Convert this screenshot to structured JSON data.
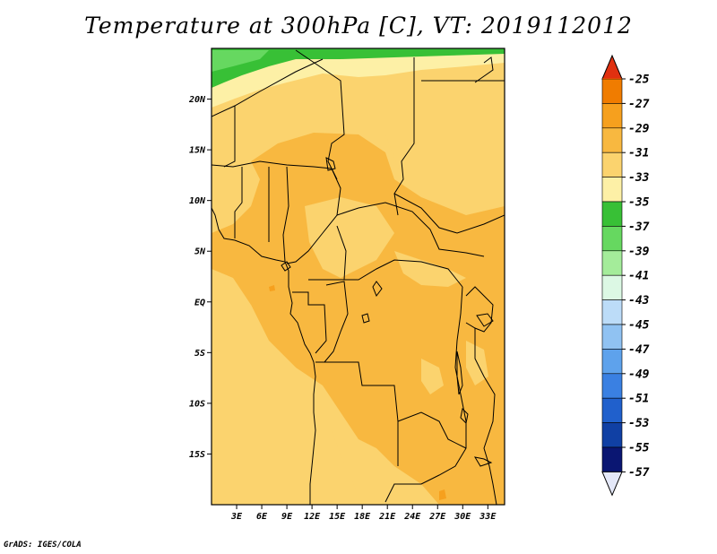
{
  "title": "Temperature at 300hPa [C], VT: 2019112012",
  "credit": "GrADS: IGES/COLA",
  "map": {
    "lon_range": [
      0,
      35
    ],
    "lat_range": [
      -20,
      25
    ],
    "lat_ticks": [
      {
        "label": "20N",
        "lat": 20
      },
      {
        "label": "15N",
        "lat": 15
      },
      {
        "label": "10N",
        "lat": 10
      },
      {
        "label": "5N",
        "lat": 5
      },
      {
        "label": "EQ",
        "lat": 0
      },
      {
        "label": "5S",
        "lat": -5
      },
      {
        "label": "10S",
        "lat": -10
      },
      {
        "label": "15S",
        "lat": -15
      }
    ],
    "lon_ticks": [
      {
        "label": "3E",
        "lon": 3
      },
      {
        "label": "6E",
        "lon": 6
      },
      {
        "label": "9E",
        "lon": 9
      },
      {
        "label": "12E",
        "lon": 12
      },
      {
        "label": "15E",
        "lon": 15
      },
      {
        "label": "18E",
        "lon": 18
      },
      {
        "label": "21E",
        "lon": 21
      },
      {
        "label": "24E",
        "lon": 24
      },
      {
        "label": "27E",
        "lon": 27
      },
      {
        "label": "30E",
        "lon": 30
      },
      {
        "label": "33E",
        "lon": 33
      }
    ]
  },
  "colorbar": {
    "levels": [
      {
        "label": "-25",
        "color": "#e85a00"
      },
      {
        "label": "-27",
        "color": "#f07c00"
      },
      {
        "label": "-29",
        "color": "#f6a01e"
      },
      {
        "label": "-31",
        "color": "#f8b840"
      },
      {
        "label": "-33",
        "color": "#fbd36e"
      },
      {
        "label": "-35",
        "color": "#fdf0a6"
      },
      {
        "label": "-37",
        "color": "#38c036"
      },
      {
        "label": "-39",
        "color": "#66d860"
      },
      {
        "label": "-41",
        "color": "#a4ec9a"
      },
      {
        "label": "-43",
        "color": "#dcf8e4"
      },
      {
        "label": "-45",
        "color": "#bcdcf8"
      },
      {
        "label": "-47",
        "color": "#90c2f2"
      },
      {
        "label": "-49",
        "color": "#5ea2ec"
      },
      {
        "label": "-51",
        "color": "#3a80e2"
      },
      {
        "label": "-53",
        "color": "#2060cc"
      },
      {
        "label": "-55",
        "color": "#1040a4"
      },
      {
        "label": "-57",
        "color": "#0a1672"
      }
    ],
    "top_color": "#e03010",
    "bottom_color": "#e4e8f8"
  }
}
